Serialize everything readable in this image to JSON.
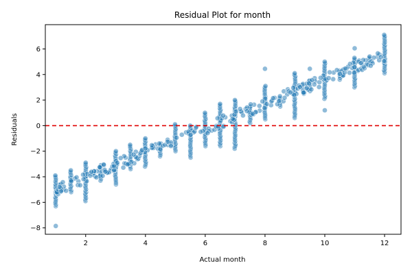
{
  "chart_data": {
    "type": "scatter",
    "title": "Residual Plot for month",
    "xlabel": "Actual month",
    "ylabel": "Residuals",
    "xlim": [
      0.65,
      12.55
    ],
    "ylim": [
      -8.5,
      7.9
    ],
    "xticks": [
      2,
      4,
      6,
      8,
      10,
      12
    ],
    "yticks": [
      -8,
      -6,
      -4,
      -2,
      0,
      2,
      4,
      6
    ],
    "grid": false,
    "legend": "none",
    "reference_line": {
      "y": 0,
      "style": "dashed",
      "color": "#e00000"
    },
    "point_color": "#1f77b4",
    "point_alpha": 0.5,
    "columns": [
      {
        "x": 1.0,
        "y_min": -6.3,
        "y_max": -3.9,
        "outliers": [
          -7.85
        ]
      },
      {
        "x": 1.5,
        "y_min": -5.2,
        "y_max": -3.5,
        "outliers": []
      },
      {
        "x": 2.0,
        "y_min": -5.9,
        "y_max": -2.9,
        "outliers": []
      },
      {
        "x": 2.5,
        "y_min": -4.3,
        "y_max": -3.1,
        "outliers": []
      },
      {
        "x": 3.0,
        "y_min": -4.6,
        "y_max": -2.0,
        "outliers": []
      },
      {
        "x": 3.5,
        "y_min": -3.4,
        "y_max": -1.5,
        "outliers": []
      },
      {
        "x": 4.0,
        "y_min": -3.2,
        "y_max": -1.0,
        "outliers": []
      },
      {
        "x": 4.5,
        "y_min": -2.4,
        "y_max": -1.4,
        "outliers": []
      },
      {
        "x": 5.0,
        "y_min": -2.0,
        "y_max": 0.1,
        "outliers": []
      },
      {
        "x": 5.5,
        "y_min": -2.5,
        "y_max": 0.0,
        "outliers": []
      },
      {
        "x": 6.0,
        "y_min": -1.6,
        "y_max": 1.0,
        "outliers": []
      },
      {
        "x": 6.5,
        "y_min": -1.6,
        "y_max": 1.7,
        "outliers": []
      },
      {
        "x": 7.0,
        "y_min": -1.8,
        "y_max": 2.0,
        "outliers": []
      },
      {
        "x": 7.5,
        "y_min": 0.2,
        "y_max": 1.5,
        "outliers": []
      },
      {
        "x": 8.0,
        "y_min": 0.5,
        "y_max": 3.1,
        "outliers": [
          4.45
        ]
      },
      {
        "x": 8.5,
        "y_min": 1.5,
        "y_max": 2.3,
        "outliers": []
      },
      {
        "x": 9.0,
        "y_min": 0.6,
        "y_max": 4.1,
        "outliers": []
      },
      {
        "x": 9.5,
        "y_min": 2.7,
        "y_max": 3.5,
        "outliers": [
          4.45
        ]
      },
      {
        "x": 10.0,
        "y_min": 2.1,
        "y_max": 5.0,
        "outliers": [
          1.2
        ]
      },
      {
        "x": 10.5,
        "y_min": 3.6,
        "y_max": 4.3,
        "outliers": []
      },
      {
        "x": 11.0,
        "y_min": 3.0,
        "y_max": 5.3,
        "outliers": [
          6.05
        ]
      },
      {
        "x": 11.5,
        "y_min": 4.9,
        "y_max": 5.4,
        "outliers": []
      },
      {
        "x": 12.0,
        "y_min": 4.1,
        "y_max": 7.1,
        "outliers": []
      }
    ],
    "trend_band": {
      "x_start": 1.0,
      "x_end": 12.0,
      "y_start": -5.0,
      "y_end": 5.5
    }
  }
}
